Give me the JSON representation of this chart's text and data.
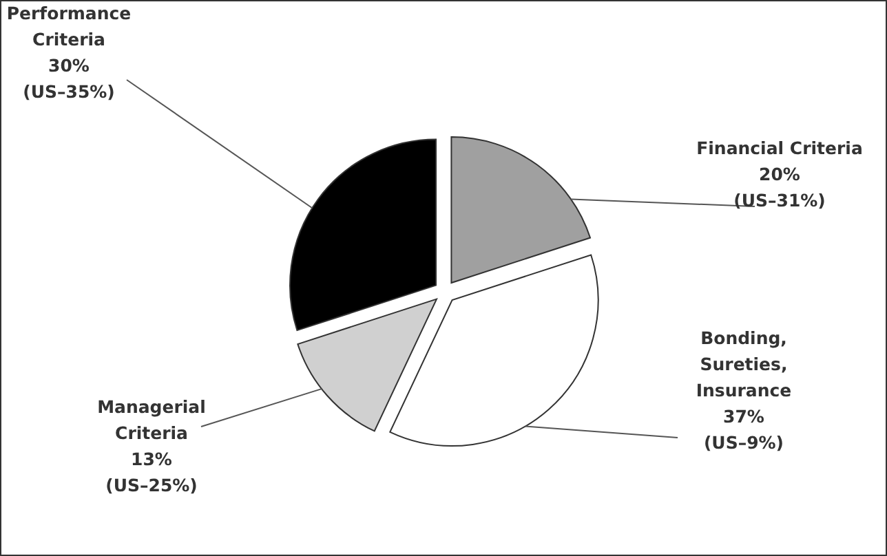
{
  "chart_data": {
    "type": "pie",
    "categories": [
      "Financial Criteria",
      "Bonding, Sureties, Insurance",
      "Managerial Criteria",
      "Performance Criteria"
    ],
    "values": [
      20,
      37,
      13,
      30
    ],
    "colors": [
      "#a0a0a0",
      "#ffffff",
      "#d0d0d0",
      "#000000"
    ],
    "value_labels": [
      "20%\n(US–31%)",
      "37%\n(US–9%)",
      "13%\n(US–25%)",
      "30%\n(US–35%)"
    ]
  }
}
